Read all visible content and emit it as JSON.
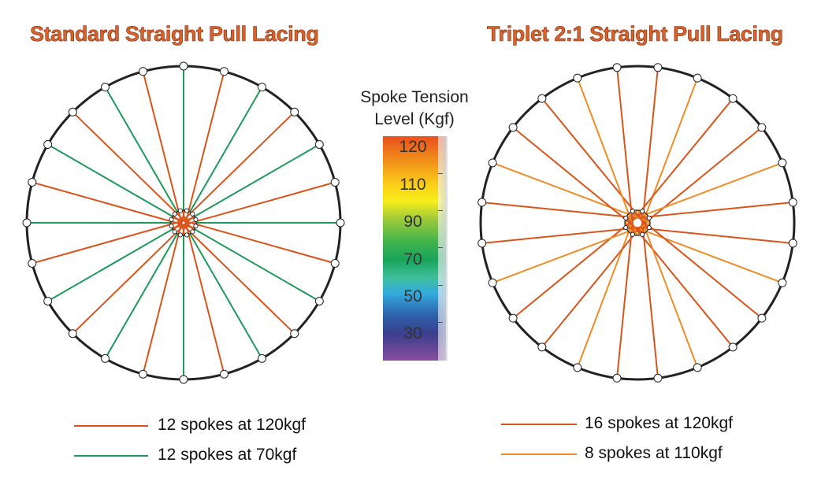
{
  "colors": {
    "rim": "#222222",
    "title_fill": "#d9622b",
    "orange_red": "#d9541a",
    "green": "#1e9a5a",
    "light_orange": "#ef8c25"
  },
  "left_wheel": {
    "title": "Standard Straight Pull Lacing",
    "legend": [
      {
        "label": "12 spokes at 120kgf",
        "color": "#d9541a"
      },
      {
        "label": "12 spokes at 70kgf",
        "color": "#1e9a5a"
      }
    ]
  },
  "right_wheel": {
    "title": "Triplet 2:1 Straight Pull Lacing",
    "legend": [
      {
        "label": "16 spokes at 120kgf",
        "color": "#d9541a"
      },
      {
        "label": "8 spokes at 110kgf",
        "color": "#ef8c25"
      }
    ]
  },
  "scale": {
    "title_line1": "Spoke Tension",
    "title_line2": "Level (Kgf)",
    "ticks": [
      "120",
      "110",
      "90",
      "70",
      "50",
      "30"
    ]
  }
}
